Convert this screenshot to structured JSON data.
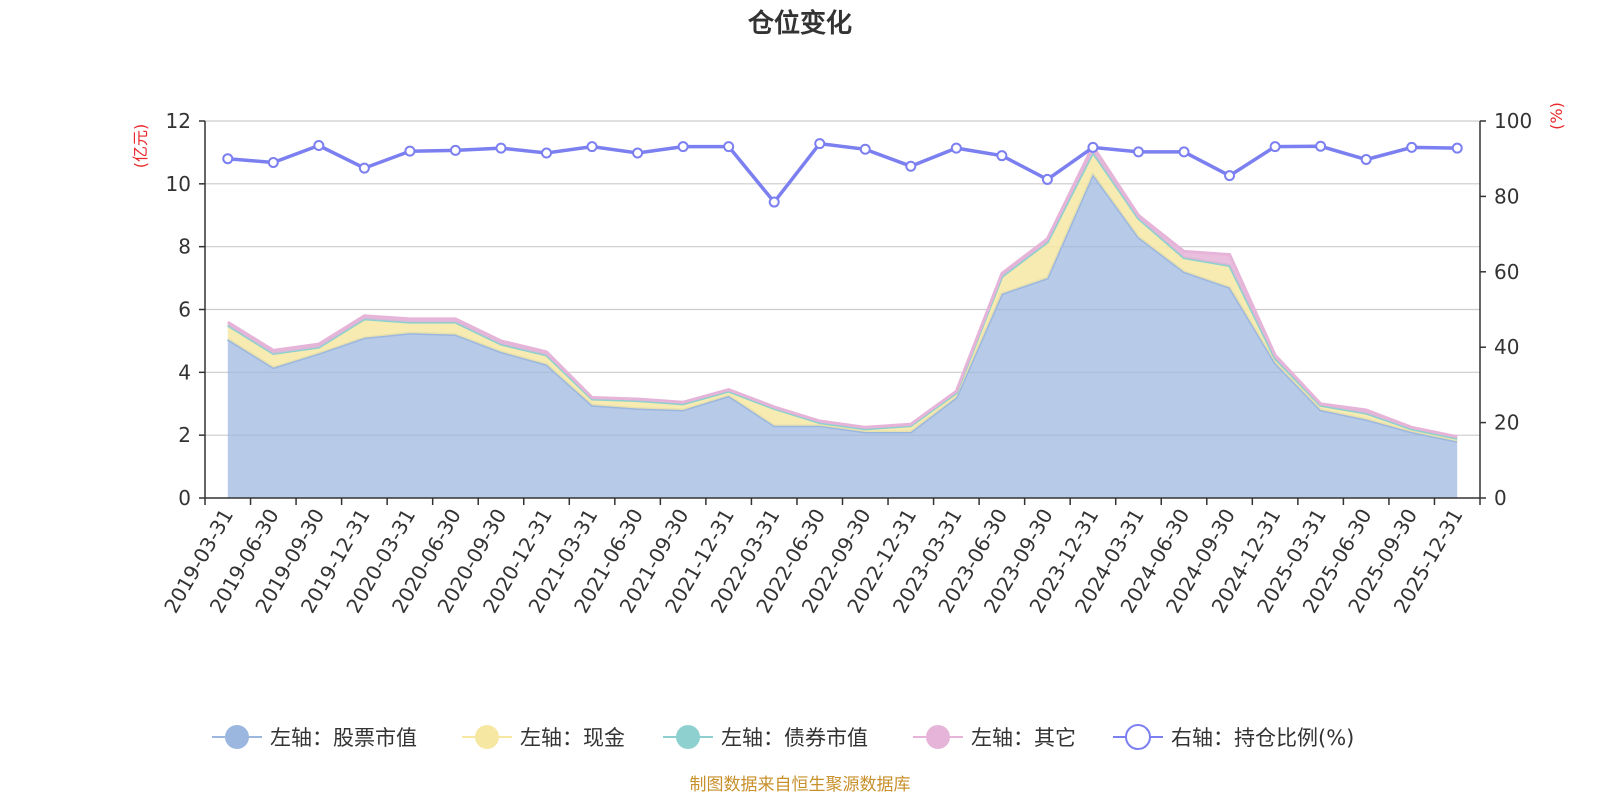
{
  "chart_data": {
    "type": "area",
    "title": "仓位变化",
    "left_axis": {
      "unit": "(亿元)",
      "ylim": [
        0,
        12
      ],
      "ticks": [
        0,
        2,
        4,
        6,
        8,
        10,
        12
      ]
    },
    "right_axis": {
      "unit": "(%)",
      "ylim": [
        0,
        100
      ],
      "ticks": [
        0,
        20,
        40,
        60,
        80,
        100
      ]
    },
    "categories": [
      "2019-03-31",
      "2019-06-30",
      "2019-09-30",
      "2019-12-31",
      "2020-03-31",
      "2020-06-30",
      "2020-09-30",
      "2020-12-31",
      "2021-03-31",
      "2021-06-30",
      "2021-09-30",
      "2021-12-31",
      "2022-03-31",
      "2022-06-30",
      "2022-09-30",
      "2022-12-31",
      "2023-03-31",
      "2023-06-30",
      "2023-09-30",
      "2023-12-31",
      "2024-03-31",
      "2024-06-30",
      "2024-09-30",
      "2024-12-31",
      "2025-03-31",
      "2025-06-30",
      "2025-09-30",
      "2025-12-31"
    ],
    "series": [
      {
        "name": "左轴：股票市值",
        "axis": "left",
        "stack": true,
        "color": "#9bb7e0",
        "values": [
          5.05,
          4.15,
          4.6,
          5.1,
          5.25,
          5.2,
          4.65,
          4.25,
          2.95,
          2.85,
          2.8,
          3.25,
          2.3,
          2.3,
          2.1,
          2.1,
          3.2,
          6.5,
          7.0,
          10.3,
          8.3,
          7.2,
          6.7,
          4.3,
          2.8,
          2.5,
          2.1,
          1.8
        ]
      },
      {
        "name": "左轴：现金",
        "axis": "left",
        "stack": true,
        "color": "#f6e7a3",
        "values": [
          0.45,
          0.45,
          0.2,
          0.6,
          0.35,
          0.4,
          0.25,
          0.3,
          0.2,
          0.25,
          0.2,
          0.15,
          0.55,
          0.1,
          0.1,
          0.2,
          0.15,
          0.55,
          1.15,
          0.7,
          0.6,
          0.45,
          0.7,
          0.15,
          0.15,
          0.2,
          0.1,
          0.1
        ]
      },
      {
        "name": "左轴：债券市值",
        "axis": "left",
        "stack": true,
        "color": "#8ed0d0",
        "values": [
          0,
          0,
          0,
          0,
          0,
          0,
          0,
          0,
          0,
          0,
          0,
          0,
          0,
          0,
          0,
          0,
          0,
          0,
          0,
          0,
          0,
          0,
          0,
          0,
          0,
          0,
          0,
          0
        ]
      },
      {
        "name": "左轴：其它",
        "axis": "left",
        "stack": true,
        "color": "#e6b4d8",
        "values": [
          0.1,
          0.1,
          0.1,
          0.1,
          0.1,
          0.1,
          0.1,
          0.1,
          0.05,
          0.05,
          0.05,
          0.05,
          0.05,
          0.05,
          0.05,
          0.05,
          0.05,
          0.1,
          0.1,
          0.2,
          0.1,
          0.2,
          0.35,
          0.1,
          0.05,
          0.1,
          0.05,
          0.05
        ]
      },
      {
        "name": "右轴：持仓比例(%)",
        "axis": "right",
        "type": "line",
        "color": "#7b7ff0",
        "values": [
          90,
          89,
          93.5,
          87.5,
          92,
          92.2,
          92.8,
          91.5,
          93.2,
          91.5,
          93.2,
          93.2,
          78.5,
          94,
          92.5,
          88,
          92.8,
          90.8,
          84.5,
          93,
          91.8,
          91.8,
          85.5,
          93.2,
          93.3,
          89.8,
          93,
          92.8
        ]
      }
    ]
  },
  "source_note": "制图数据来自恒生聚源数据库"
}
